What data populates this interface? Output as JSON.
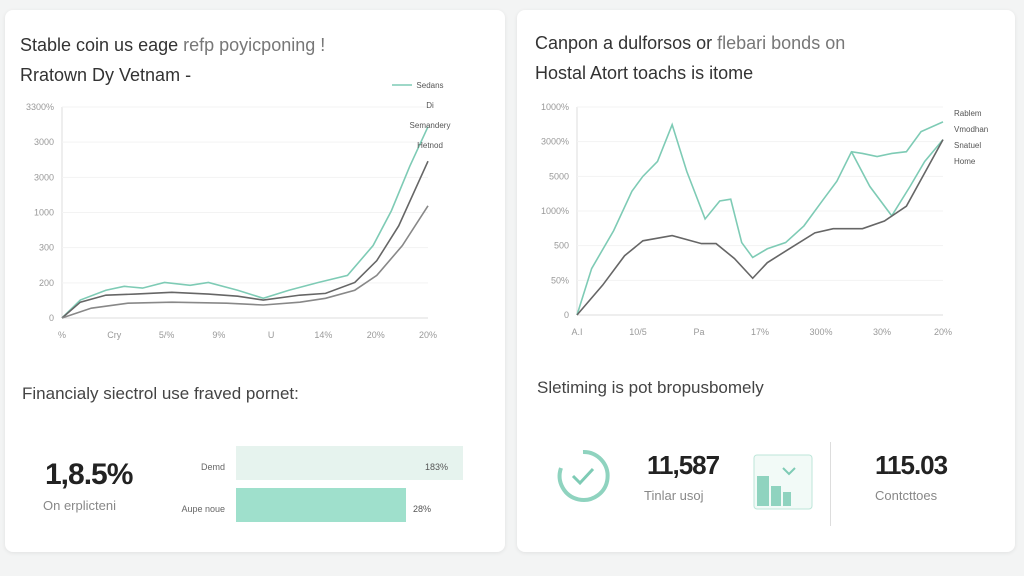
{
  "left_card": {
    "title_line1": "Stable coin us eage",
    "title_line1_soft": "refp poyicponing !",
    "title_line2": "Rratown Dy Vetnam  -",
    "summary_title": "Financialy siectrol use fraved pornet:",
    "metric_value": "1,8.5%",
    "metric_label": "On erplicteni",
    "bars": [
      {
        "label": "Demd",
        "value_label": "183%",
        "fill": 1.0,
        "color": "#e6f3ee"
      },
      {
        "label": "Aupe noue",
        "value_label": "28%",
        "fill": 0.75,
        "color": "#9fe0cc"
      }
    ]
  },
  "right_card": {
    "title_line1": "Canpon a dulforsos or",
    "title_line1_soft": "flebari bonds on",
    "title_line2": "Hostal Atort toachs is itome",
    "summary_title": "Sletiming is pot bropusbomely",
    "stat1_value": "11,587",
    "stat1_label": "Tinlar usoj",
    "stat2_value": "115.03",
    "stat2_label": "Contcttoes",
    "icons": [
      "check-circle-icon",
      "bar-chart-icon"
    ]
  },
  "colors": {
    "teal": "#7ecbb5",
    "dark": "#555",
    "gray": "#888",
    "light": "#aaa"
  },
  "chart_data": [
    {
      "type": "line",
      "ylim": [
        0,
        600
      ],
      "xlim": [
        0,
        100
      ],
      "y_tick_labels": [
        "0",
        "200",
        "300",
        "1000",
        "3000",
        "3000",
        "3300%"
      ],
      "x_tick_labels": [
        "%",
        "Cry",
        "5/%",
        "9%",
        "U",
        "14%",
        "20%",
        "20%"
      ],
      "legend": [
        "Sedans",
        "Di",
        "Semandery",
        "Hetnod"
      ],
      "legend_placement": "top-right",
      "series": [
        {
          "color": "#7ecbb5",
          "x": [
            0,
            5,
            12,
            17,
            22,
            28,
            35,
            40,
            48,
            55,
            62,
            70,
            78,
            85,
            90,
            95,
            100
          ],
          "y": [
            0,
            51,
            79,
            90,
            85,
            101,
            93,
            101,
            79,
            56,
            79,
            101,
            121,
            206,
            305,
            431,
            544
          ]
        },
        {
          "color": "#666",
          "x": [
            0,
            5,
            12,
            20,
            30,
            40,
            48,
            55,
            65,
            72,
            80,
            86,
            92,
            100
          ],
          "y": [
            0,
            45,
            65,
            68,
            73,
            68,
            62,
            51,
            65,
            70,
            101,
            163,
            262,
            446
          ]
        },
        {
          "color": "#888",
          "x": [
            0,
            8,
            18,
            30,
            45,
            55,
            65,
            72,
            80,
            86,
            93,
            100
          ],
          "y": [
            0,
            28,
            42,
            45,
            42,
            37,
            45,
            56,
            79,
            121,
            206,
            319
          ]
        }
      ]
    },
    {
      "type": "line",
      "ylim": [
        0,
        600
      ],
      "xlim": [
        0,
        100
      ],
      "y_tick_labels": [
        "0",
        "50%",
        "500",
        "1000%",
        "5000",
        "3000%",
        "1000%"
      ],
      "x_tick_labels": [
        "A.I",
        "10/5",
        "Pa",
        "17%",
        "300%",
        "30%",
        "20%"
      ],
      "legend": [
        "Rablem",
        "Vmodhan",
        "Snatuel",
        "Home"
      ],
      "legend_placement": "top-right",
      "series": [
        {
          "color": "#7ecbb5",
          "x": [
            0,
            4,
            10,
            15,
            18,
            22,
            26,
            30,
            35,
            39,
            42,
            45,
            48,
            52,
            57,
            62,
            67,
            71,
            75,
            78,
            82,
            86,
            90,
            94,
            100
          ],
          "y": [
            0,
            134,
            243,
            357,
            400,
            443,
            549,
            414,
            277,
            329,
            334,
            209,
            166,
            191,
            209,
            257,
            329,
            386,
            471,
            466,
            457,
            466,
            471,
            529,
            557
          ]
        },
        {
          "color": "#7ecbb5",
          "x": [
            75,
            80,
            86,
            91,
            95,
            100
          ],
          "y": [
            471,
            371,
            286,
            371,
            443,
            506
          ]
        },
        {
          "color": "#666",
          "x": [
            0,
            7,
            13,
            18,
            26,
            34,
            38,
            43,
            48,
            52,
            58,
            65,
            70,
            78,
            84,
            90,
            100
          ],
          "y": [
            0,
            86,
            171,
            214,
            229,
            206,
            206,
            163,
            106,
            151,
            191,
            237,
            249,
            249,
            271,
            314,
            506
          ]
        }
      ]
    }
  ]
}
